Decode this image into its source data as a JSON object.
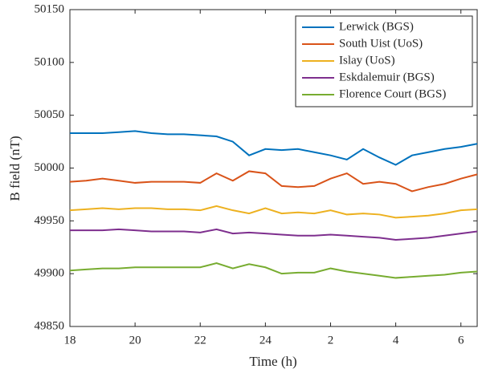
{
  "chart_data": {
    "type": "line",
    "xlabel": "Time (h)",
    "ylabel": "B field (nT)",
    "x": [
      18,
      18.5,
      19,
      19.5,
      20,
      20.5,
      21,
      21.5,
      22,
      22.5,
      23,
      23.5,
      24,
      24.5,
      25,
      25.5,
      26,
      26.5,
      27,
      27.5,
      28,
      28.5,
      29,
      29.5,
      30,
      30.5
    ],
    "series": [
      {
        "name": "Lerwick (BGS)",
        "color": "#0072BD",
        "values": [
          50033,
          50033,
          50033,
          50034,
          50035,
          50033,
          50032,
          50032,
          50031,
          50030,
          50025,
          50012,
          50018,
          50017,
          50018,
          50015,
          50012,
          50008,
          50018,
          50010,
          50003,
          50012,
          50015,
          50018,
          50020,
          50023
        ]
      },
      {
        "name": "South Uist (UoS)",
        "color": "#D95319",
        "values": [
          49987,
          49988,
          49990,
          49988,
          49986,
          49987,
          49987,
          49987,
          49986,
          49995,
          49988,
          49997,
          49995,
          49983,
          49982,
          49983,
          49990,
          49995,
          49985,
          49987,
          49985,
          49978,
          49982,
          49985,
          49990,
          49994
        ]
      },
      {
        "name": "Islay (UoS)",
        "color": "#EDB120",
        "values": [
          49960,
          49961,
          49962,
          49961,
          49962,
          49962,
          49961,
          49961,
          49960,
          49964,
          49960,
          49957,
          49962,
          49957,
          49958,
          49957,
          49960,
          49956,
          49957,
          49956,
          49953,
          49954,
          49955,
          49957,
          49960,
          49961
        ]
      },
      {
        "name": "Eskdalemuir (BGS)",
        "color": "#7E2F8E",
        "values": [
          49941,
          49941,
          49941,
          49942,
          49941,
          49940,
          49940,
          49940,
          49939,
          49942,
          49938,
          49939,
          49938,
          49937,
          49936,
          49936,
          49937,
          49936,
          49935,
          49934,
          49932,
          49933,
          49934,
          49936,
          49938,
          49940
        ]
      },
      {
        "name": "Florence Court (BGS)",
        "color": "#77AC30",
        "values": [
          49903,
          49904,
          49905,
          49905,
          49906,
          49906,
          49906,
          49906,
          49906,
          49910,
          49905,
          49909,
          49906,
          49900,
          49901,
          49901,
          49905,
          49902,
          49900,
          49898,
          49896,
          49897,
          49898,
          49899,
          49901,
          49902
        ]
      }
    ],
    "xlim": [
      18,
      30.5
    ],
    "xticks": [
      18,
      20,
      22,
      24,
      {
        "value": 26,
        "label": "2"
      },
      {
        "value": 28,
        "label": "4"
      },
      {
        "value": 30,
        "label": "6"
      }
    ],
    "ylim": [
      49850,
      50150
    ],
    "yticks": [
      49850,
      49900,
      49950,
      50000,
      50050,
      50100,
      50150
    ],
    "legend": "northeast",
    "grid": false
  }
}
